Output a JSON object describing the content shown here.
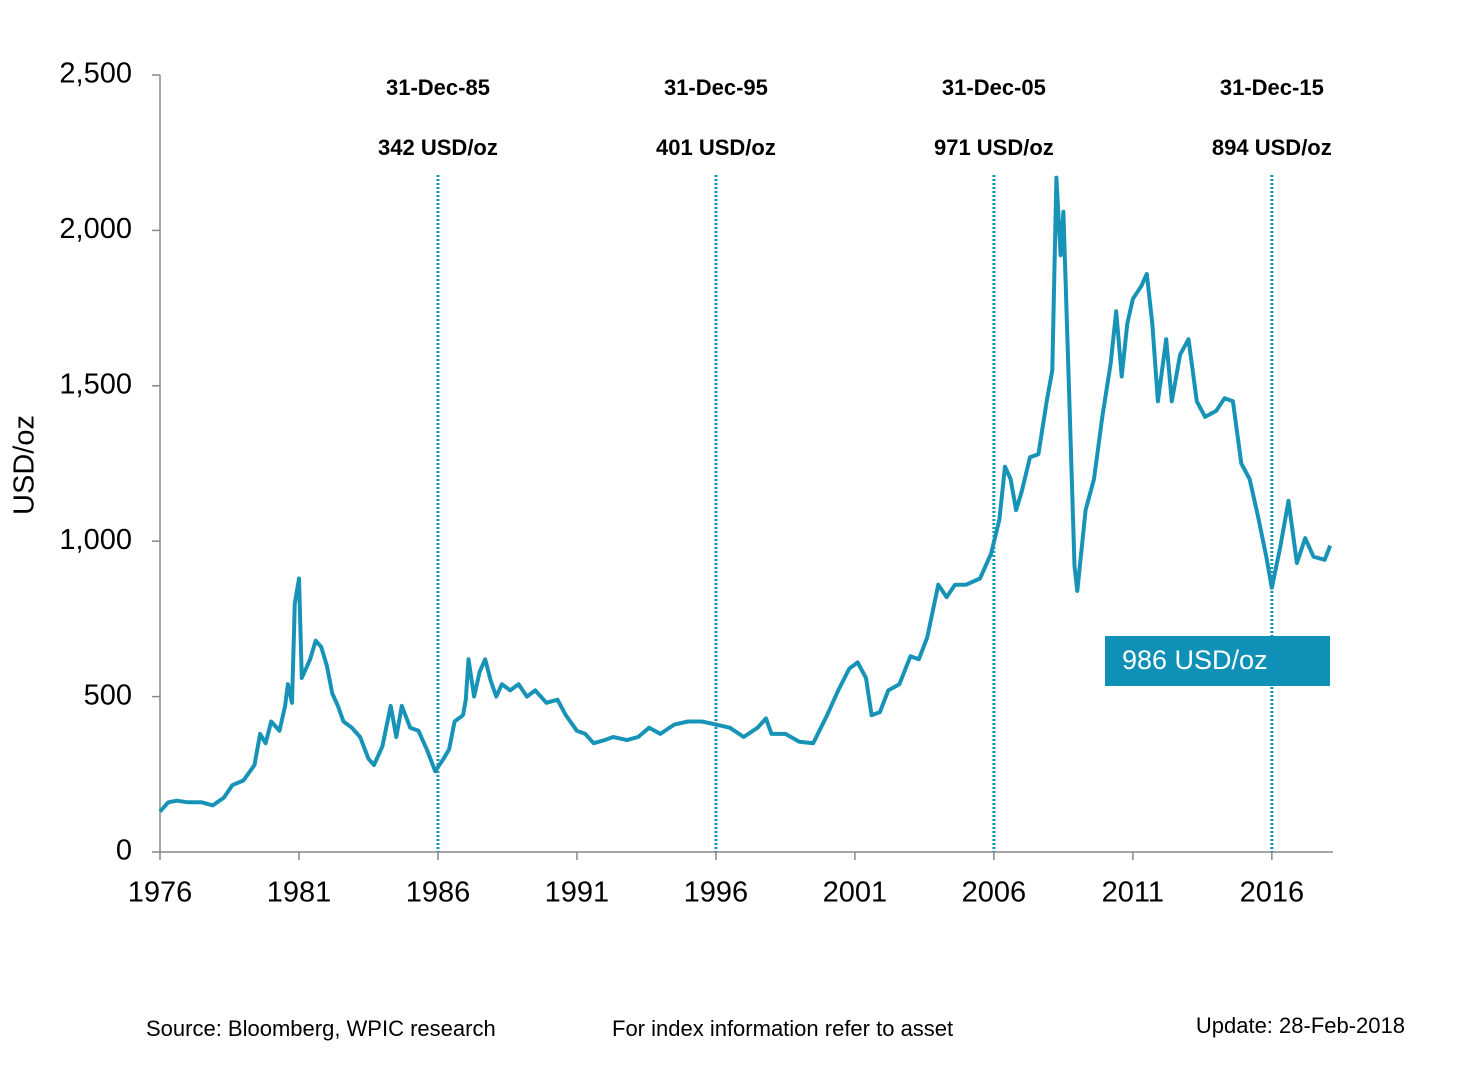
{
  "chart_data": {
    "type": "line",
    "y_label": "USD/oz",
    "color": "#1893b8",
    "x": [
      1976.0,
      1976.3,
      1976.6,
      1977.0,
      1977.5,
      1977.9,
      1978.3,
      1978.6,
      1979.0,
      1979.4,
      1979.6,
      1979.8,
      1980.0,
      1980.3,
      1980.5,
      1980.6,
      1980.75,
      1980.85,
      1981.0,
      1981.1,
      1981.4,
      1981.6,
      1981.8,
      1982.0,
      1982.2,
      1982.4,
      1982.6,
      1982.9,
      1983.2,
      1983.5,
      1983.7,
      1984.0,
      1984.3,
      1984.5,
      1984.7,
      1985.0,
      1985.3,
      1985.6,
      1985.9,
      1986.2,
      1986.4,
      1986.6,
      1986.9,
      1987.0,
      1987.1,
      1987.3,
      1987.5,
      1987.7,
      1987.9,
      1988.1,
      1988.3,
      1988.6,
      1988.9,
      1989.2,
      1989.5,
      1989.9,
      1990.3,
      1990.6,
      1991.0,
      1991.3,
      1991.6,
      1992.0,
      1992.3,
      1992.8,
      1993.2,
      1993.6,
      1994.0,
      1994.5,
      1995.0,
      1995.5,
      1996.0,
      1996.5,
      1997.0,
      1997.5,
      1997.8,
      1998.0,
      1998.5,
      1999.0,
      1999.5,
      2000.0,
      2000.4,
      2000.8,
      2001.1,
      2001.4,
      2001.6,
      2001.9,
      2002.2,
      2002.6,
      2003.0,
      2003.3,
      2003.6,
      2004.0,
      2004.3,
      2004.6,
      2005.0,
      2005.5,
      2005.9,
      2006.2,
      2006.4,
      2006.6,
      2006.8,
      2007.0,
      2007.3,
      2007.6,
      2007.9,
      2008.1,
      2008.25,
      2008.4,
      2008.5,
      2008.7,
      2008.9,
      2009.0,
      2009.3,
      2009.6,
      2009.9,
      2010.2,
      2010.4,
      2010.6,
      2010.8,
      2011.0,
      2011.3,
      2011.5,
      2011.7,
      2011.9,
      2012.2,
      2012.4,
      2012.7,
      2013.0,
      2013.3,
      2013.6,
      2014.0,
      2014.3,
      2014.6,
      2014.9,
      2015.2,
      2015.5,
      2015.8,
      2016.0,
      2016.3,
      2016.6,
      2016.9,
      2017.2,
      2017.5,
      2017.9,
      2018.1
    ],
    "values": [
      130,
      160,
      165,
      160,
      160,
      150,
      175,
      215,
      230,
      280,
      380,
      350,
      420,
      390,
      470,
      540,
      480,
      800,
      880,
      560,
      620,
      680,
      660,
      600,
      510,
      470,
      420,
      400,
      370,
      300,
      280,
      340,
      470,
      370,
      470,
      400,
      390,
      330,
      260,
      300,
      330,
      420,
      440,
      490,
      620,
      500,
      580,
      620,
      550,
      500,
      540,
      520,
      540,
      500,
      520,
      480,
      490,
      440,
      390,
      380,
      350,
      360,
      370,
      360,
      370,
      400,
      380,
      410,
      420,
      420,
      410,
      400,
      370,
      400,
      430,
      380,
      380,
      355,
      350,
      440,
      520,
      590,
      610,
      560,
      440,
      450,
      520,
      540,
      630,
      620,
      690,
      860,
      820,
      860,
      860,
      880,
      960,
      1070,
      1240,
      1200,
      1100,
      1160,
      1270,
      1280,
      1450,
      1550,
      2170,
      1920,
      2060,
      1500,
      920,
      840,
      1100,
      1200,
      1400,
      1570,
      1740,
      1530,
      1700,
      1780,
      1820,
      1860,
      1700,
      1450,
      1650,
      1450,
      1600,
      1650,
      1450,
      1400,
      1420,
      1460,
      1450,
      1250,
      1200,
      1080,
      950,
      850,
      980,
      1130,
      930,
      1010,
      950,
      940,
      986
    ],
    "xlim": [
      1976,
      2018.2
    ],
    "xticks": [
      1976,
      1981,
      1986,
      1991,
      1996,
      2001,
      2006,
      2011,
      2016
    ],
    "ylim": [
      0,
      2500
    ],
    "yticks": [
      0,
      {
        "value": 500,
        "label": "500"
      },
      {
        "value": 1000,
        "label": "1,000"
      },
      {
        "value": 1500,
        "label": "1,500"
      },
      {
        "value": 2000,
        "label": "2,000"
      },
      {
        "value": 2500,
        "label": "2,500"
      }
    ],
    "annotations": [
      {
        "x": 1986,
        "date": "31-Dec-85",
        "text": "342 USD/oz"
      },
      {
        "x": 1996,
        "date": "31-Dec-95",
        "text": "401 USD/oz"
      },
      {
        "x": 2006,
        "date": "31-Dec-05",
        "text": "971 USD/oz"
      },
      {
        "x": 2016,
        "date": "31-Dec-15",
        "text": "894 USD/oz"
      }
    ],
    "current_label": "986 USD/oz",
    "footer": [
      "Source: Bloomberg, WPIC research",
      "For index information refer to asset",
      "Update: 28-Feb-2018"
    ]
  }
}
